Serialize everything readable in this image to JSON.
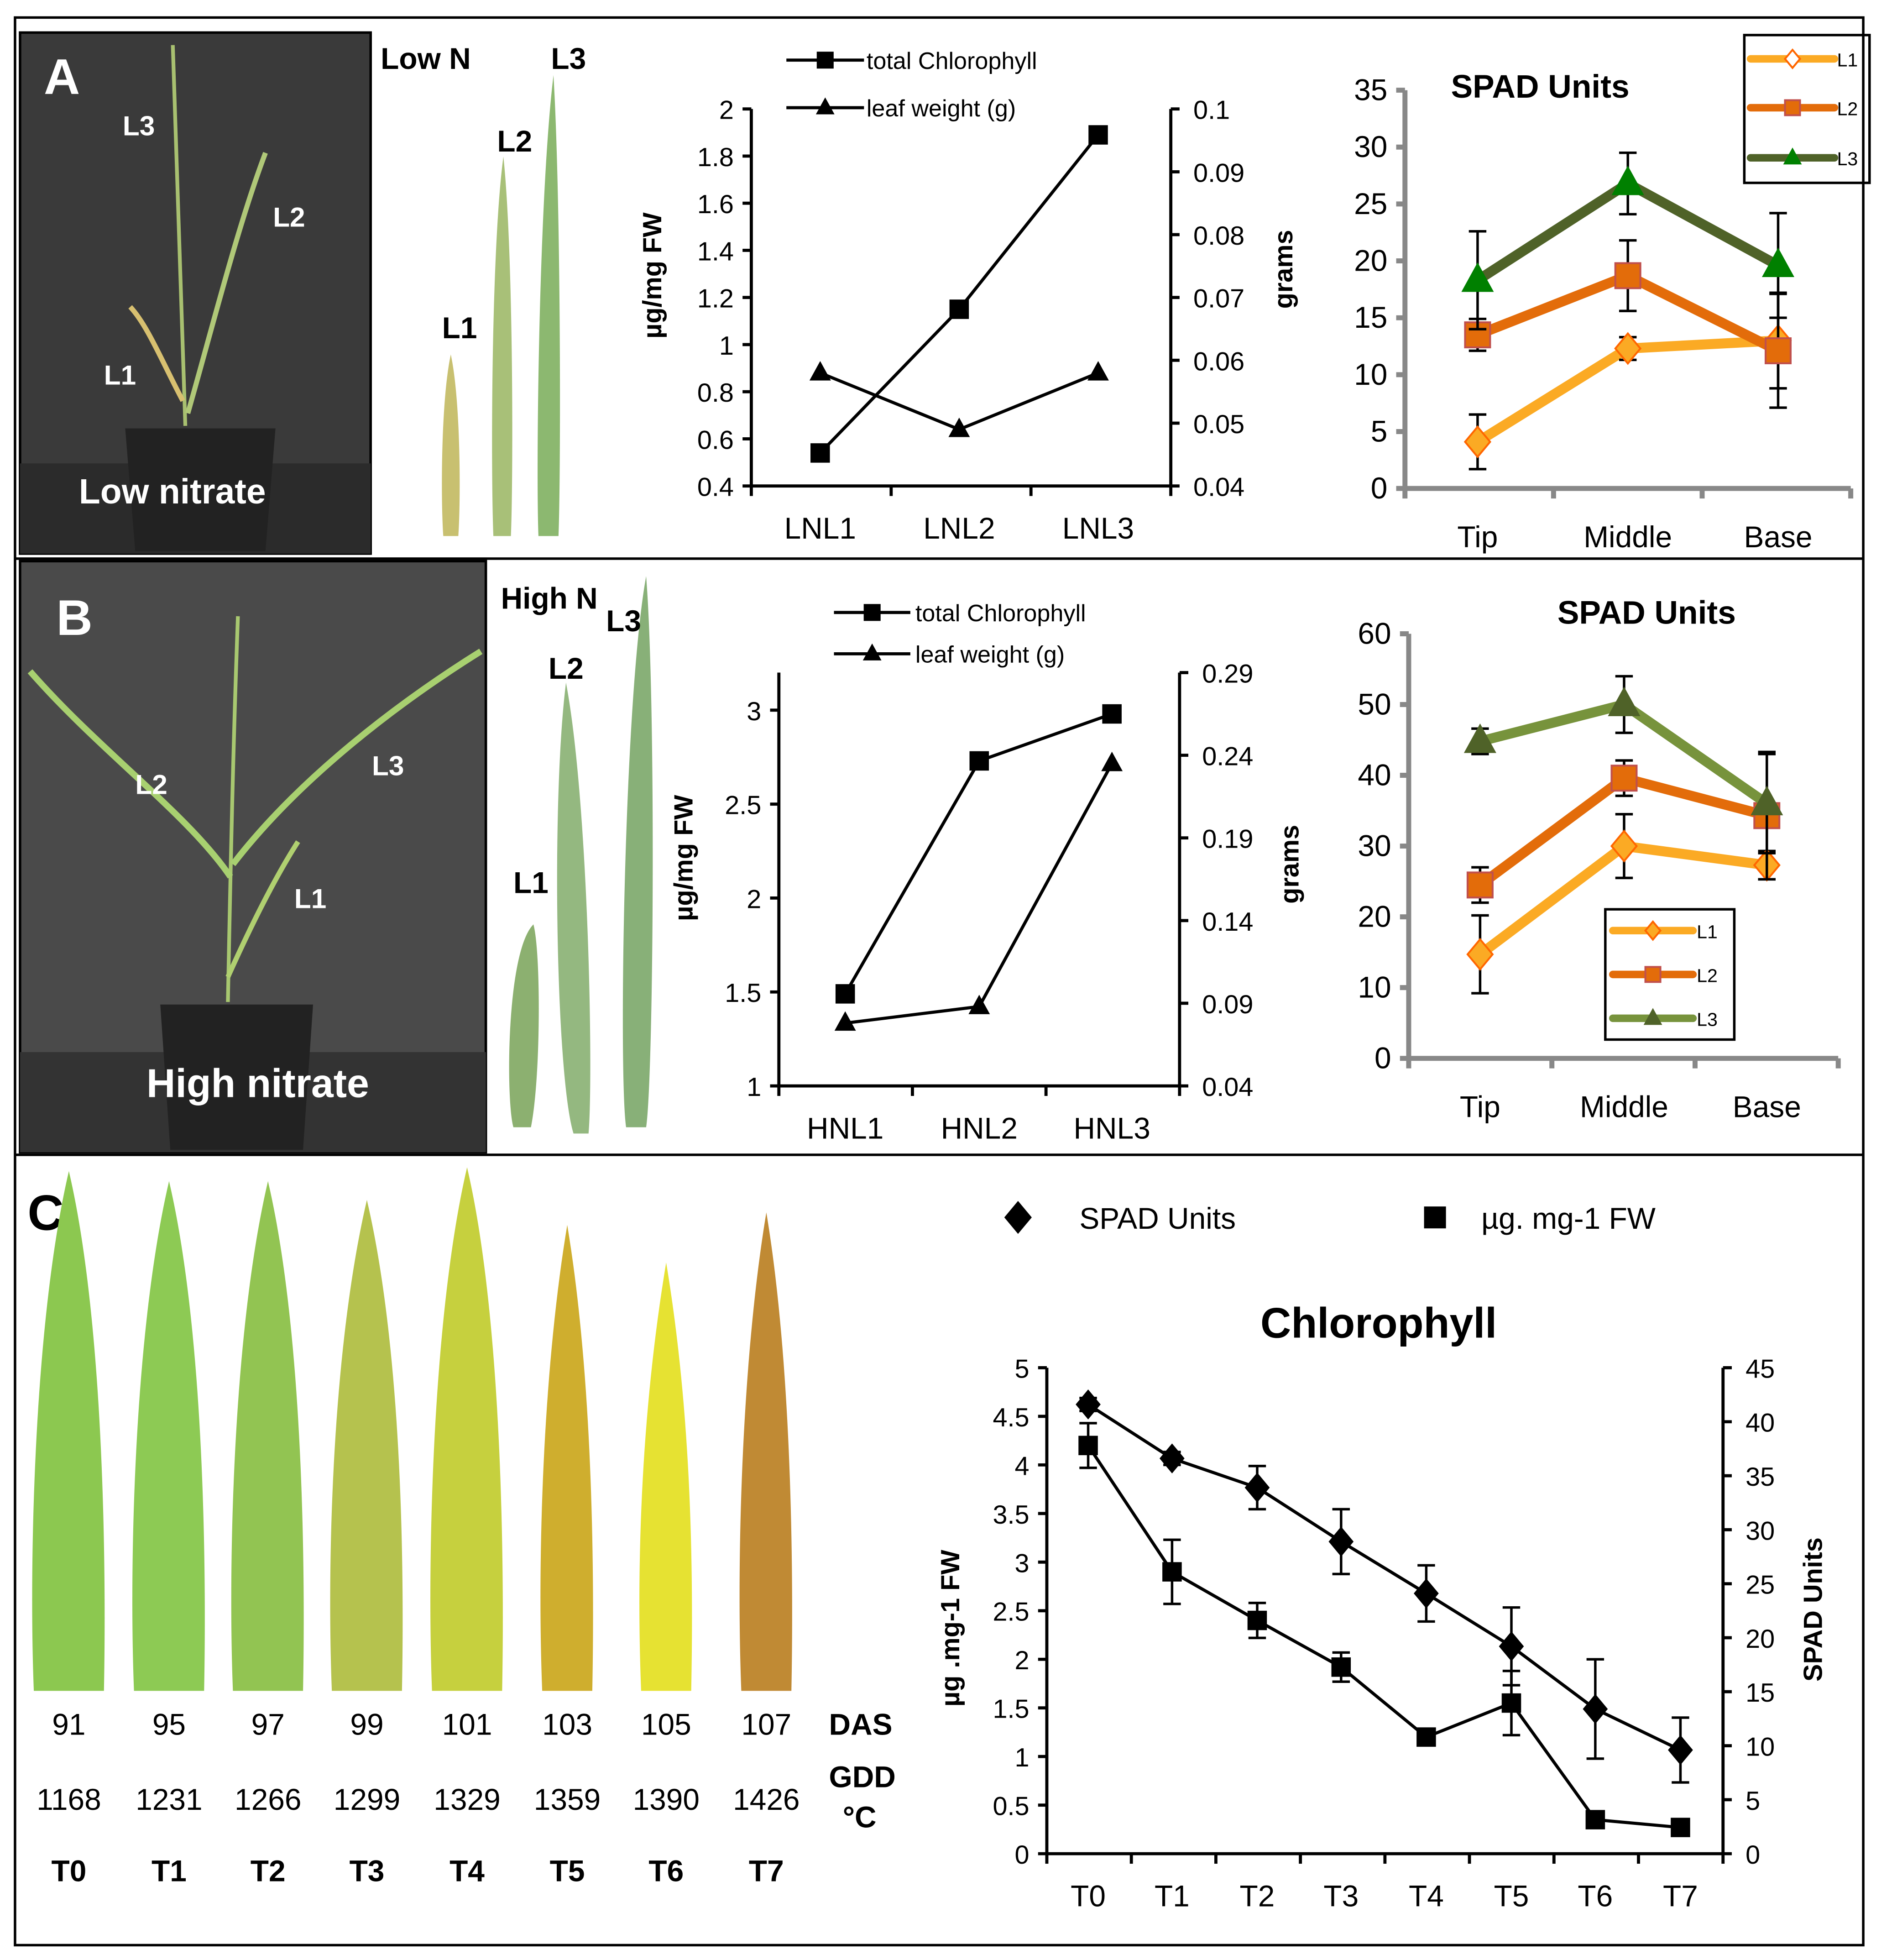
{
  "panels": {
    "A": {
      "letter": "A",
      "photo_caption": "Low nitrate",
      "photo_labels": [
        "L3",
        "L2",
        "L1"
      ],
      "leaf_title": "Low  N",
      "leaf_labels": [
        "L1",
        "L2",
        "L3"
      ]
    },
    "B": {
      "letter": "B",
      "photo_caption": "High nitrate",
      "photo_labels": [
        "L2",
        "L3",
        "L1"
      ],
      "leaf_title": "High N",
      "leaf_labels": [
        "L1",
        "L2",
        "L3"
      ]
    },
    "C": {
      "letter": "C",
      "das": [
        "91",
        "95",
        "97",
        "99",
        "101",
        "103",
        "105",
        "107"
      ],
      "gdd": [
        "1168",
        "1231",
        "1266",
        "1299",
        "1329",
        "1359",
        "1390",
        "1426"
      ],
      "stages": [
        "T0",
        "T1",
        "T2",
        "T3",
        "T4",
        "T5",
        "T6",
        "T7"
      ],
      "das_label": "DAS",
      "gdd_label": "GDD",
      "gdd_unit": "°C",
      "leaf_colors": [
        "#8cc850",
        "#8dca54",
        "#92c452",
        "#b5c24e",
        "#c6d03e",
        "#cfae2e",
        "#e6e232",
        "#c08a34"
      ]
    }
  },
  "chart_data": [
    {
      "id": "A-chl",
      "type": "line",
      "title": "",
      "categories": [
        "LNL1",
        "LNL2",
        "LNL3"
      ],
      "ylabel": "µg/mg FW",
      "ylim": [
        0.4,
        2
      ],
      "yticks": [
        "0.4",
        "0.6",
        "0.8",
        "1",
        "1.2",
        "1.4",
        "1.6",
        "1.8",
        "2"
      ],
      "y2label": "grams",
      "y2lim": [
        0.04,
        0.1
      ],
      "y2ticks": [
        "0.04",
        "0.05",
        "0.06",
        "0.07",
        "0.08",
        "0.09",
        "0.1"
      ],
      "legend": "top",
      "series": [
        {
          "name": "total Chlorophyll",
          "axis": "left",
          "marker": "square",
          "values": [
            0.54,
            1.15,
            1.89
          ]
        },
        {
          "name": "leaf weight (g)",
          "axis": "right",
          "marker": "triangle",
          "values": [
            0.058,
            0.049,
            0.058
          ]
        }
      ]
    },
    {
      "id": "A-spad",
      "type": "line",
      "title": "SPAD Units",
      "categories": [
        "Tip",
        "Middle",
        "Base"
      ],
      "ylim": [
        0,
        35
      ],
      "yticks": [
        "0",
        "5",
        "10",
        "15",
        "20",
        "25",
        "30",
        "35"
      ],
      "legend": "top-right",
      "series": [
        {
          "name": "L1",
          "color": "#fbaa24",
          "marker": "diamond",
          "values": [
            4.1,
            12.3,
            13.0
          ],
          "errors": [
            2.4,
            1.0,
            4.2
          ]
        },
        {
          "name": "L2",
          "color": "#e36c0a",
          "marker": "square",
          "values": [
            13.5,
            18.7,
            12.1
          ],
          "errors": [
            1.4,
            3.1,
            5.0
          ]
        },
        {
          "name": "L3",
          "color": "#4f6228",
          "marker": "triangle",
          "marker_color": "#008000",
          "values": [
            18.3,
            26.8,
            19.6
          ],
          "errors": [
            4.3,
            2.7,
            4.6
          ]
        }
      ]
    },
    {
      "id": "B-chl",
      "type": "line",
      "title": "",
      "categories": [
        "HNL1",
        "HNL2",
        "HNL3"
      ],
      "ylabel": "µg/mg FW",
      "ylim": [
        1,
        3.2
      ],
      "yticks": [
        "1",
        "1.5",
        "2",
        "2.5",
        "3"
      ],
      "y2label": "grams",
      "y2lim": [
        0.04,
        0.29
      ],
      "y2ticks": [
        "0.04",
        "0.09",
        "0.14",
        "0.19",
        "0.24",
        "0.29"
      ],
      "legend": "top",
      "series": [
        {
          "name": "total Chlorophyll",
          "axis": "left",
          "marker": "square",
          "values": [
            1.49,
            2.73,
            2.98
          ]
        },
        {
          "name": "leaf weight (g)",
          "axis": "right",
          "marker": "triangle",
          "values": [
            0.078,
            0.088,
            0.235
          ]
        }
      ]
    },
    {
      "id": "B-spad",
      "type": "line",
      "title": "SPAD Units",
      "categories": [
        "Tip",
        "Middle",
        "Base"
      ],
      "ylim": [
        0,
        60
      ],
      "yticks": [
        "0",
        "10",
        "20",
        "30",
        "40",
        "50",
        "60"
      ],
      "legend": "bottom-right",
      "series": [
        {
          "name": "L1",
          "color": "#fbaa24",
          "marker": "diamond",
          "values": [
            14.7,
            30.0,
            27.3
          ],
          "errors": [
            5.5,
            4.5,
            2.0
          ]
        },
        {
          "name": "L2",
          "color": "#e36c0a",
          "marker": "square",
          "values": [
            24.5,
            39.6,
            34.3
          ],
          "errors": [
            2.5,
            2.5,
            9.0
          ]
        },
        {
          "name": "L3",
          "color": "#77933c",
          "marker": "triangle",
          "marker_color": "#4f6228",
          "values": [
            44.8,
            50.0,
            36.0
          ],
          "errors": [
            1.8,
            4.0,
            7.0
          ]
        }
      ]
    },
    {
      "id": "C-chl",
      "type": "line",
      "title": "Chlorophyll",
      "categories": [
        "T0",
        "T1",
        "T2",
        "T3",
        "T4",
        "T5",
        "T6",
        "T7"
      ],
      "ylabel": "µg .mg-1 FW",
      "ylim": [
        0,
        5
      ],
      "yticks": [
        "0",
        "0.5",
        "1",
        "1.5",
        "2",
        "2.5",
        "3",
        "3.5",
        "4",
        "4.5",
        "5"
      ],
      "y2label": "SPAD Units",
      "y2lim": [
        0,
        45
      ],
      "y2ticks": [
        "0",
        "5",
        "10",
        "15",
        "20",
        "25",
        "30",
        "35",
        "40",
        "45"
      ],
      "legend": "top",
      "series": [
        {
          "name": "SPAD Units",
          "axis": "right",
          "marker": "diamond",
          "values": [
            41.6,
            36.6,
            33.9,
            28.9,
            24.1,
            19.2,
            13.4,
            9.6
          ],
          "errors": [
            0.6,
            0.6,
            2.0,
            3.0,
            2.6,
            3.6,
            4.6,
            3.0
          ]
        },
        {
          "name": "µg. mg-1  FW",
          "axis": "left",
          "marker": "square",
          "values": [
            4.2,
            2.9,
            2.4,
            1.92,
            1.2,
            1.55,
            0.35,
            0.27
          ],
          "errors": [
            0.23,
            0.33,
            0.18,
            0.15,
            0,
            0.33,
            0,
            0
          ]
        }
      ]
    }
  ]
}
